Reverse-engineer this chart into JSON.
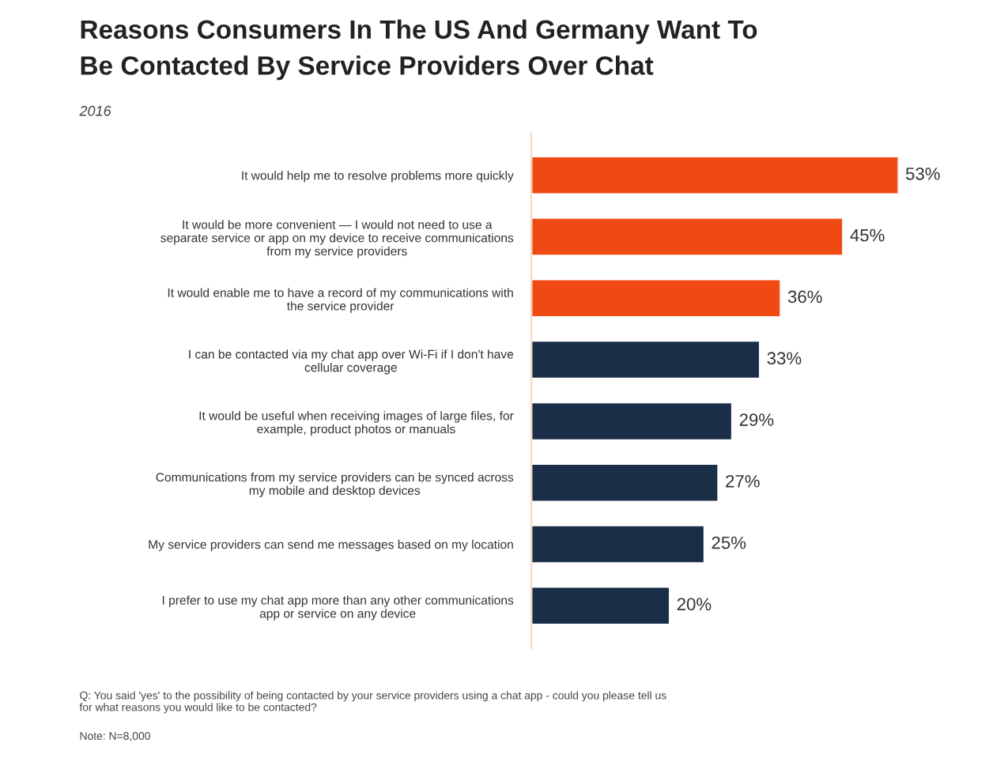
{
  "chart_data": {
    "type": "bar",
    "orientation": "horizontal",
    "title": "Reasons Consumers In The US And Germany Want To\nBe Contacted By Service Providers Over Chat",
    "subtitle": "2016",
    "categories": [
      "It would help me to resolve problems more quickly",
      "It would be more convenient — I would not need to use a\nseparate service or app on my device to receive communications\nfrom my service providers",
      "It would enable me to have a record of my communications with\nthe service provider",
      "I can be contacted via my chat app over Wi-Fi if I don't have\ncellular coverage",
      "It would be useful when receiving images of large files, for\nexample, product photos or manuals",
      "Communications from my service providers can be synced across\nmy mobile and desktop devices",
      "My service providers can send me messages based on my location",
      "I prefer to use my chat app more than any other communications\napp or service on any device"
    ],
    "values": [
      53,
      45,
      36,
      33,
      29,
      27,
      25,
      20
    ],
    "colors": [
      "#f04a14",
      "#f04a14",
      "#f04a14",
      "#1b2e47",
      "#1b2e47",
      "#1b2e47",
      "#1b2e47",
      "#1b2e47"
    ],
    "value_labels": [
      "53%",
      "45%",
      "36%",
      "33%",
      "29%",
      "27%",
      "25%",
      "20%"
    ],
    "annotations": [
      "Q: You said 'yes' to the possibility of being contacted by your service providers using a chat app - could you please tell us\nfor what reasons you would like to be contacted?",
      "Note: N=8,000"
    ],
    "grid": false,
    "legend": false
  }
}
